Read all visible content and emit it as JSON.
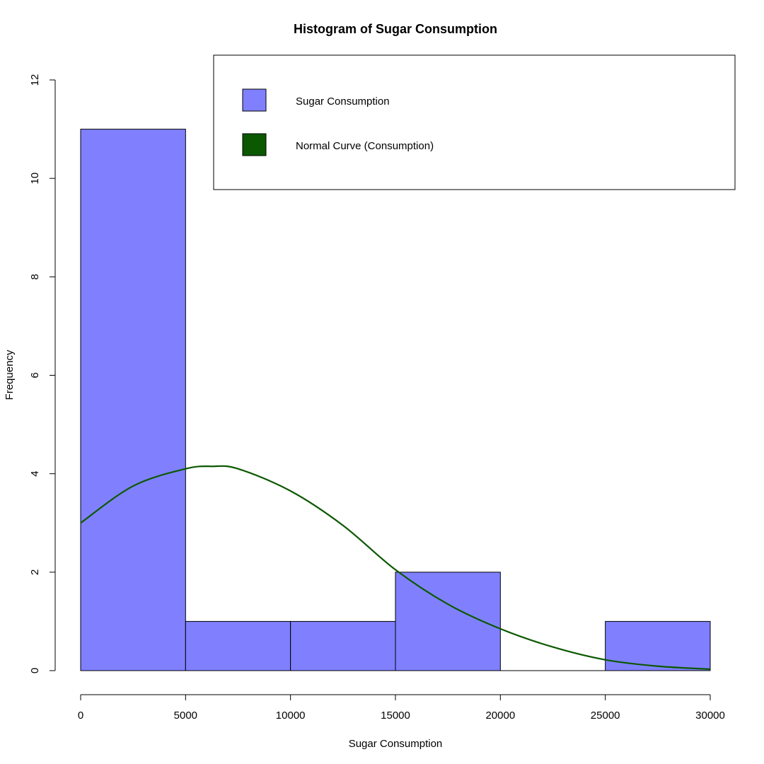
{
  "chart_data": {
    "type": "bar",
    "title": "Histogram of Sugar Consumption",
    "xlabel": "Sugar Consumption",
    "ylabel": "Frequency",
    "xlim": [
      0,
      30000
    ],
    "ylim": [
      0,
      12
    ],
    "x_ticks": [
      "0",
      "5000",
      "10000",
      "15000",
      "20000",
      "25000",
      "30000"
    ],
    "y_ticks": [
      "0",
      "2",
      "4",
      "6",
      "8",
      "10",
      "12"
    ],
    "bins": [
      {
        "from": 0,
        "to": 5000,
        "count": 11
      },
      {
        "from": 5000,
        "to": 10000,
        "count": 1
      },
      {
        "from": 10000,
        "to": 15000,
        "count": 1
      },
      {
        "from": 15000,
        "to": 20000,
        "count": 2
      },
      {
        "from": 20000,
        "to": 25000,
        "count": 0
      },
      {
        "from": 25000,
        "to": 30000,
        "count": 1
      }
    ],
    "series": [
      {
        "name": "Sugar Consumption",
        "kind": "histogram",
        "color": "#8080FF",
        "border_color": "#000000"
      },
      {
        "name": "Normal Curve (Consumption)",
        "kind": "line",
        "color": "#0B5800",
        "curve": {
          "x": [
            0,
            2500,
            5000,
            6250,
            7500,
            10000,
            12500,
            15000,
            17500,
            20000,
            22500,
            25000,
            27500,
            30000
          ],
          "y": [
            3.0,
            3.75,
            4.1,
            4.15,
            4.1,
            3.65,
            2.95,
            2.05,
            1.35,
            0.85,
            0.48,
            0.22,
            0.09,
            0.03
          ]
        }
      }
    ],
    "legend": {
      "position": "top-right",
      "items": [
        {
          "label": "Sugar Consumption",
          "color": "#8080FF"
        },
        {
          "label": "Normal Curve (Consumption)",
          "color": "#0B5800"
        }
      ]
    },
    "grid": false
  }
}
